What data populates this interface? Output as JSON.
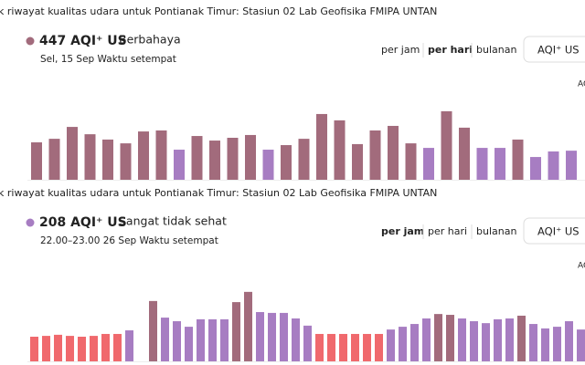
{
  "panels": [
    {
      "title": "k riwayat kualitas udara untuk Pontianak Timur: Stasiun 02 Lab Geofisika FMIPA UNTAN",
      "headline": "447 AQI⁺ US",
      "status": "Berbahaya",
      "dot_color": "#a26b7c",
      "time": "Sel, 15 Sep Waktu setempat",
      "tabs": [
        "per jam",
        "per hari",
        "bulanan"
      ],
      "active_tab": 1,
      "unit_button": "AQI⁺ US",
      "axis_label": "AQ",
      "chart": {
        "type": "bar",
        "ylim": [
          150,
          500
        ],
        "values": [
          298,
          312,
          359,
          330,
          309,
          294,
          341,
          345,
          269,
          323,
          305,
          316,
          327,
          269,
          287,
          312,
          410,
          385,
          291,
          345,
          363,
          294,
          276,
          421,
          356,
          276,
          276,
          309,
          240,
          262,
          265
        ],
        "colors": [
          "#a26b7c",
          "#a26b7c",
          "#a26b7c",
          "#a26b7c",
          "#a26b7c",
          "#a26b7c",
          "#a26b7c",
          "#a26b7c",
          "#a77dc2",
          "#a26b7c",
          "#a26b7c",
          "#a26b7c",
          "#a26b7c",
          "#a77dc2",
          "#a26b7c",
          "#a26b7c",
          "#a26b7c",
          "#a26b7c",
          "#a26b7c",
          "#a26b7c",
          "#a26b7c",
          "#a26b7c",
          "#a77dc2",
          "#a26b7c",
          "#a26b7c",
          "#a77dc2",
          "#a77dc2",
          "#a26b7c",
          "#a77dc2",
          "#a77dc2",
          "#a77dc2"
        ]
      }
    },
    {
      "title": "k riwayat kualitas udara untuk Pontianak Timur: Stasiun 02 Lab Geofisika FMIPA UNTAN",
      "headline": "208 AQI⁺ US",
      "status": "Sangat tidak sehat",
      "dot_color": "#a77dc2",
      "time": "22.00–23.00 26 Sep Waktu setempat",
      "tabs": [
        "per jam",
        "per hari",
        "bulanan"
      ],
      "active_tab": 0,
      "unit_button": "AQI⁺ US",
      "axis_label": "AQ",
      "chart": {
        "type": "bar",
        "ylim": [
          100,
          400
        ],
        "values": [
          189,
          192,
          196,
          192,
          189,
          192,
          199,
          199,
          212,
          null,
          318,
          258,
          245,
          225,
          252,
          252,
          252,
          314,
          351,
          278,
          275,
          275,
          255,
          229,
          199,
          199,
          199,
          199,
          199,
          199,
          215,
          225,
          235,
          255,
          271,
          268,
          255,
          245,
          238,
          252,
          255,
          265,
          235,
          219,
          225,
          245,
          215
        ],
        "colors": [
          "#f0696d",
          "#f0696d",
          "#f0696d",
          "#f0696d",
          "#f0696d",
          "#f0696d",
          "#f0696d",
          "#f0696d",
          "#a77dc2",
          null,
          "#a26b7c",
          "#a77dc2",
          "#a77dc2",
          "#a77dc2",
          "#a77dc2",
          "#a77dc2",
          "#a77dc2",
          "#a26b7c",
          "#a26b7c",
          "#a77dc2",
          "#a77dc2",
          "#a77dc2",
          "#a77dc2",
          "#a77dc2",
          "#f0696d",
          "#f0696d",
          "#f0696d",
          "#f0696d",
          "#f0696d",
          "#f0696d",
          "#a77dc2",
          "#a77dc2",
          "#a77dc2",
          "#a77dc2",
          "#a26b7c",
          "#a26b7c",
          "#a77dc2",
          "#a77dc2",
          "#a77dc2",
          "#a77dc2",
          "#a77dc2",
          "#a26b7c",
          "#a77dc2",
          "#a77dc2",
          "#a77dc2",
          "#a77dc2",
          "#a77dc2"
        ]
      }
    }
  ]
}
